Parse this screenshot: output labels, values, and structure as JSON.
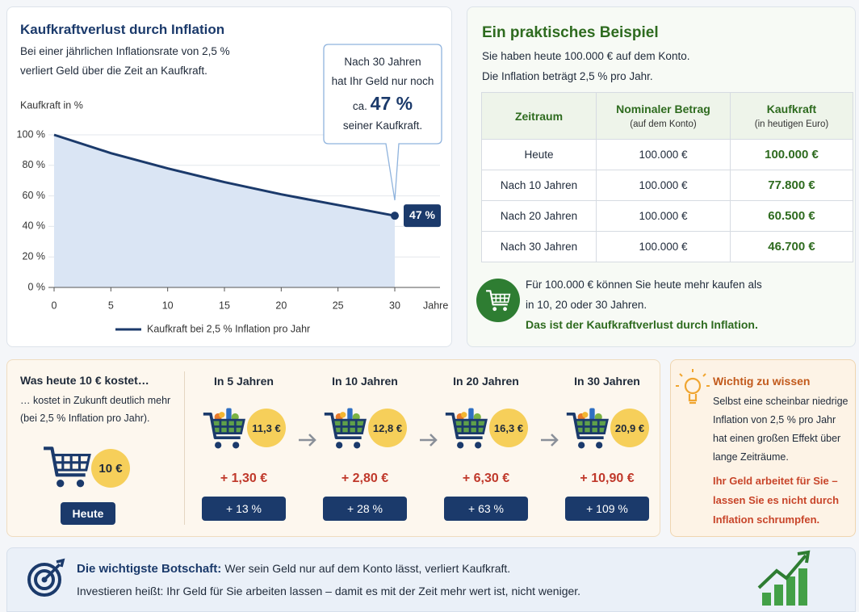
{
  "chart_data": {
    "type": "line",
    "title": "Kaufkraftverlust durch Inflation",
    "subtitle": [
      "Bei einer jährlichen Inflationsrate von 2,5 %",
      "verliert Geld über die Zeit an Kaufkraft."
    ],
    "y_label": "Kaufkraft in %",
    "x_label": "Jahre",
    "x": [
      0,
      5,
      10,
      15,
      20,
      25,
      30
    ],
    "series": [
      {
        "name": "Kaufkraft bei 2,5 % Inflation pro Jahr",
        "color": "#1b3a6b",
        "area_color": "#dae5f4",
        "values": [
          100,
          88,
          78,
          69,
          61,
          54,
          47
        ],
        "value_labels": [
          null,
          null,
          null,
          null,
          null,
          null,
          "47 %"
        ]
      }
    ],
    "xlim": [
      0,
      30
    ],
    "xticks": [
      0,
      5,
      10,
      15,
      20,
      25,
      30
    ],
    "ylim": [
      0,
      100
    ],
    "yticks": [
      {
        "value": 0,
        "label": "0 %"
      },
      {
        "value": 20,
        "label": "20 %"
      },
      {
        "value": 40,
        "label": "40 %"
      },
      {
        "value": 60,
        "label": "60 %"
      },
      {
        "value": 80,
        "label": "80 %"
      },
      {
        "value": 100,
        "label": "100 %"
      }
    ],
    "grid": true,
    "annotation": {
      "lines": [
        "Nach 30 Jahren",
        "hat Ihr Geld nur noch"
      ],
      "prefix": "ca.",
      "highlight": "47 %",
      "suffix": "seiner Kaufkraft."
    }
  },
  "example": {
    "title": "Ein praktisches Beispiel",
    "intro": [
      "Sie haben heute 100.000 € auf dem Konto.",
      "Die Inflation beträgt 2,5 % pro Jahr."
    ],
    "table": {
      "header": [
        {
          "title": "Zeitraum"
        },
        {
          "title": "Nominaler Betrag",
          "subtitle": "(auf dem Konto)"
        },
        {
          "title": "Kaufkraft",
          "subtitle": "(in heutigen Euro)"
        }
      ],
      "rows": [
        [
          "Heute",
          "100.000 €",
          "100.000 €"
        ],
        [
          "Nach 10 Jahren",
          "100.000 €",
          "77.800 €"
        ],
        [
          "Nach 20 Jahren",
          "100.000 €",
          "60.500 €"
        ],
        [
          "Nach 30 Jahren",
          "100.000 €",
          "46.700 €"
        ]
      ]
    },
    "summary": [
      "Für 100.000 € können Sie heute mehr kaufen als",
      "in 10, 20 oder 30 Jahren."
    ],
    "conclusion": "Das ist der Kaufkraftverlust durch Inflation."
  },
  "prices": {
    "title": "Was heute 10 € kostet…",
    "text": [
      "… kostet in Zukunft deutlich mehr",
      "(bei 2,5 % Inflation pro Jahr)."
    ],
    "today_price": "10 €",
    "today_label": "Heute",
    "steps": [
      {
        "label": "In 5 Jahren",
        "price": "11,3 €",
        "diff": "+ 1,30 €",
        "pct": "+ 13 %"
      },
      {
        "label": "In 10 Jahren",
        "price": "12,8 €",
        "diff": "+ 2,80 €",
        "pct": "+ 28 %"
      },
      {
        "label": "In 20 Jahren",
        "price": "16,3 €",
        "diff": "+ 6,30 €",
        "pct": "+ 63 %"
      },
      {
        "label": "In 30 Jahren",
        "price": "20,9 €",
        "diff": "+ 10,90 €",
        "pct": "+ 109 %"
      }
    ]
  },
  "notice": {
    "title": "Wichtig zu wissen",
    "body": [
      "Selbst eine scheinbar niedrige",
      "Inflation von 2,5 % pro Jahr",
      "hat einen großen Effekt über",
      "lange Zeiträume."
    ],
    "highlight": [
      "Ihr Geld arbeitet für Sie –",
      "lassen Sie es nicht durch",
      "Inflation schrumpfen."
    ]
  },
  "message": {
    "label": "Die wichtigste Botschaft:",
    "text": "Wer sein Geld nur auf dem Konto lässt, verliert Kaufkraft.",
    "line2": "Investieren heißt: Ihr Geld für Sie arbeiten lassen – damit es mit der Zeit mehr wert ist, nicht weniger."
  }
}
